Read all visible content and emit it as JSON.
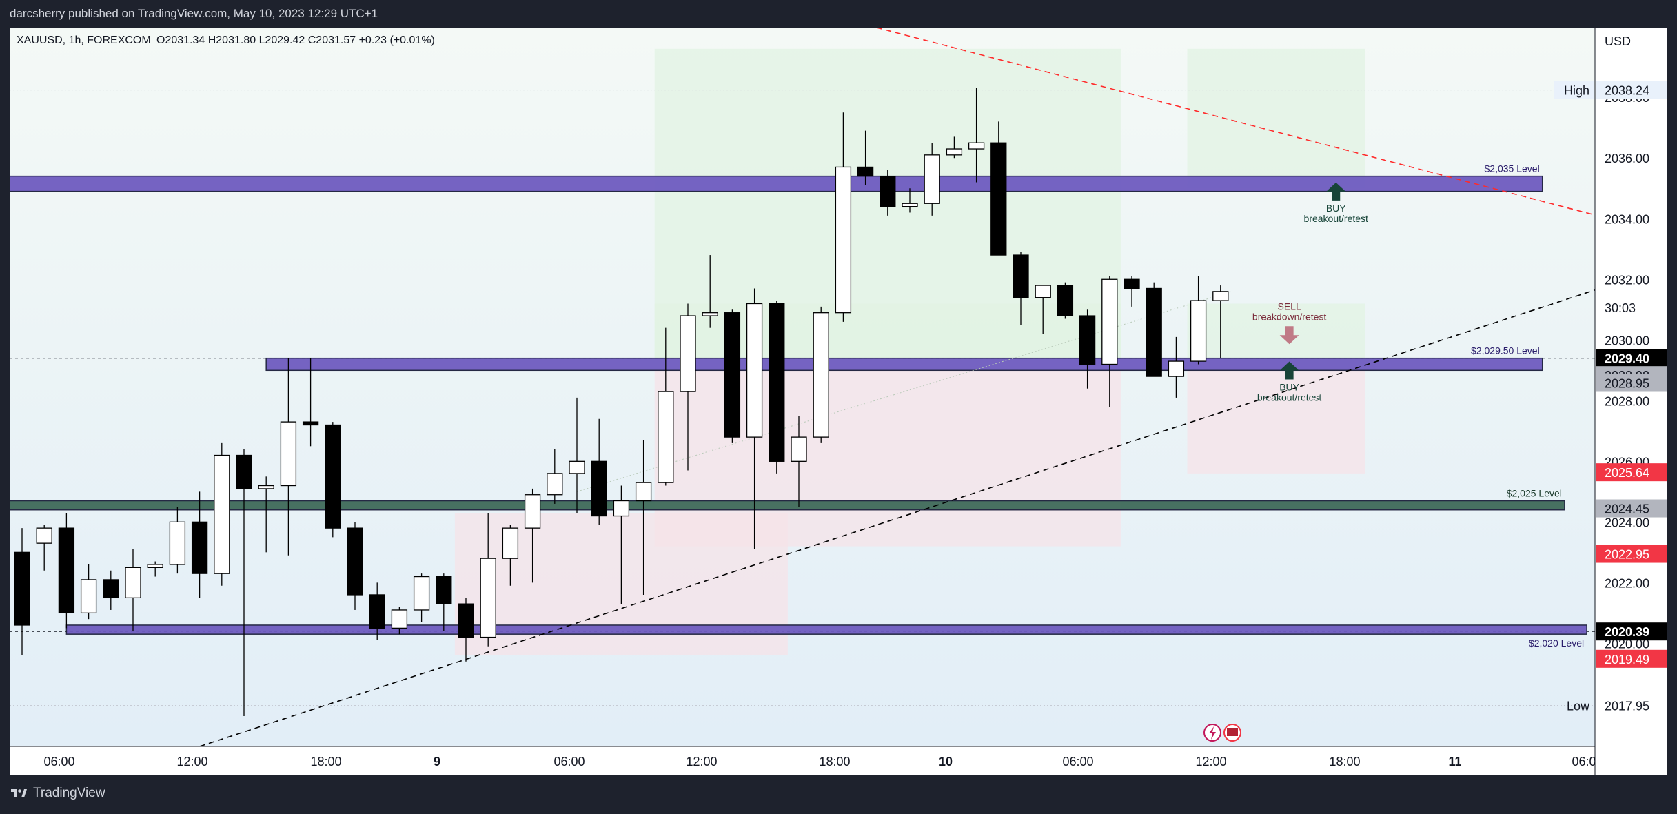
{
  "header": {
    "publish_line": "darcsherry published on TradingView.com, May 10, 2023 12:29 UTC+1"
  },
  "footer": {
    "brand": "TradingView"
  },
  "legend": {
    "symbol": "XAUUSD, 1h, FOREXCOM",
    "ohlc": "O2031.34  H2031.80  L2029.42  C2031.57  +0.23 (+0.01%)"
  },
  "axis": {
    "currency": "USD",
    "countdown": "30:03"
  },
  "colors": {
    "bull_body": "#ffffff",
    "bear_body": "#000000",
    "wick": "#000000",
    "level_purple": "#6f5cc0",
    "level_green": "#3f6b5a",
    "up_zone": "#e1f3e3",
    "down_zone": "#f5e3e8",
    "price_label_red": "#f23645",
    "price_label_black": "#000000",
    "price_label_gray": "#b2b5be"
  },
  "chart_data": {
    "type": "candlestick",
    "symbol": "XAUUSD",
    "timeframe": "1h",
    "x_labels": [
      "06:00",
      "12:00",
      "18:00",
      "9",
      "06:00",
      "12:00",
      "18:00",
      "10",
      "06:00",
      "12:00",
      "18:00",
      "11",
      "06:0"
    ],
    "y_ticks": [
      2020.0,
      2022.0,
      2024.0,
      2026.0,
      2028.0,
      2030.0,
      2032.0,
      2034.0,
      2036.0,
      2038.0
    ],
    "y_tick_labels": [
      "2020.00",
      "2022.00",
      "2024.00",
      "2026.00",
      "2028.00",
      "2030.00",
      "2032.00",
      "2034.00",
      "2036.00",
      "2038.00"
    ],
    "ylim": [
      2016.6,
      2040.3
    ],
    "candles": [
      [
        2023.0,
        2023.8,
        2019.6,
        2020.6
      ],
      [
        2023.3,
        2023.9,
        2022.4,
        2023.8
      ],
      [
        2023.8,
        2024.3,
        2020.5,
        2021.0
      ],
      [
        2021.0,
        2022.6,
        2020.8,
        2022.1
      ],
      [
        2022.1,
        2022.4,
        2021.1,
        2021.5
      ],
      [
        2021.5,
        2023.1,
        2020.4,
        2022.5
      ],
      [
        2022.5,
        2022.7,
        2022.2,
        2022.6
      ],
      [
        2022.6,
        2024.5,
        2022.3,
        2024.0
      ],
      [
        2024.0,
        2025.0,
        2021.5,
        2022.3
      ],
      [
        2022.3,
        2026.6,
        2021.9,
        2026.2
      ],
      [
        2026.2,
        2026.4,
        2017.6,
        2025.1
      ],
      [
        2025.1,
        2025.5,
        2023.0,
        2025.2
      ],
      [
        2025.2,
        2029.4,
        2022.9,
        2027.3
      ],
      [
        2027.3,
        2029.4,
        2026.5,
        2027.2
      ],
      [
        2027.2,
        2027.3,
        2023.5,
        2023.8
      ],
      [
        2023.8,
        2024.0,
        2021.1,
        2021.6
      ],
      [
        2021.6,
        2022.0,
        2020.1,
        2020.5
      ],
      [
        2020.5,
        2021.2,
        2020.3,
        2021.1
      ],
      [
        2021.1,
        2022.3,
        2020.7,
        2022.2
      ],
      [
        2022.2,
        2022.3,
        2020.4,
        2021.3
      ],
      [
        2021.3,
        2021.5,
        2019.4,
        2020.2
      ],
      [
        2020.2,
        2024.3,
        2019.9,
        2022.8
      ],
      [
        2022.8,
        2023.9,
        2021.9,
        2023.8
      ],
      [
        2023.8,
        2025.1,
        2022.0,
        2024.9
      ],
      [
        2024.9,
        2026.4,
        2024.6,
        2025.6
      ],
      [
        2025.6,
        2028.1,
        2024.3,
        2026.0
      ],
      [
        2026.0,
        2027.4,
        2023.9,
        2024.2
      ],
      [
        2024.2,
        2025.2,
        2021.3,
        2024.7
      ],
      [
        2024.7,
        2026.7,
        2021.6,
        2025.3
      ],
      [
        2025.3,
        2030.4,
        2025.2,
        2028.3
      ],
      [
        2028.3,
        2031.2,
        2025.7,
        2030.8
      ],
      [
        2030.8,
        2032.8,
        2030.4,
        2030.9
      ],
      [
        2030.9,
        2031.0,
        2026.6,
        2026.8
      ],
      [
        2026.8,
        2031.7,
        2023.1,
        2031.2
      ],
      [
        2031.2,
        2031.3,
        2025.6,
        2026.0
      ],
      [
        2026.0,
        2027.5,
        2024.5,
        2026.8
      ],
      [
        2026.8,
        2031.1,
        2026.6,
        2030.9
      ],
      [
        2030.9,
        2037.5,
        2030.6,
        2035.7
      ],
      [
        2035.7,
        2036.9,
        2035.1,
        2035.4
      ],
      [
        2035.4,
        2035.6,
        2034.1,
        2034.4
      ],
      [
        2034.4,
        2035.0,
        2034.2,
        2034.5
      ],
      [
        2034.5,
        2036.5,
        2034.1,
        2036.1
      ],
      [
        2036.1,
        2036.7,
        2036.0,
        2036.3
      ],
      [
        2036.3,
        2038.3,
        2035.2,
        2036.5
      ],
      [
        2036.5,
        2037.2,
        2032.9,
        2032.8
      ],
      [
        2032.8,
        2032.9,
        2030.5,
        2031.4
      ],
      [
        2031.4,
        2031.7,
        2030.2,
        2031.8
      ],
      [
        2031.8,
        2031.9,
        2030.7,
        2030.8
      ],
      [
        2030.8,
        2031.0,
        2028.4,
        2029.2
      ],
      [
        2029.2,
        2032.1,
        2027.8,
        2032.0
      ],
      [
        2032.0,
        2032.1,
        2031.1,
        2031.7
      ],
      [
        2031.7,
        2031.9,
        2029.0,
        2028.8
      ],
      [
        2028.8,
        2030.1,
        2028.1,
        2029.3
      ],
      [
        2029.3,
        2032.1,
        2029.2,
        2031.3
      ],
      [
        2031.3,
        2031.8,
        2029.4,
        2031.6
      ]
    ],
    "zones": [
      {
        "x0": 20,
        "x1": 34,
        "y_top": 2024.3,
        "y_mid": 2024.3,
        "y_bottom": 2019.6
      },
      {
        "x0": 29,
        "x1": 49,
        "y_top": 2031.2,
        "y_mid": 2029.4,
        "y_bottom": 2023.2
      },
      {
        "x0": 53,
        "x1": 60,
        "y_top": 2031.2,
        "y_mid": 2029.4,
        "y_bottom": 2025.6
      },
      {
        "x0": 29,
        "x1": 49,
        "y_top": 2039.6,
        "y_mid": 2029.4,
        "y_bottom": 2029.4
      },
      {
        "x0": 53,
        "x1": 60,
        "y_top": 2039.6,
        "y_mid": 2035.0,
        "y_bottom": 2035.0
      }
    ],
    "levels": [
      {
        "label": "$2,035 Level",
        "y_low": 2034.9,
        "y_high": 2035.4,
        "x0": -1,
        "x1": 68.5,
        "color": "purple"
      },
      {
        "label": "$2,029.50 Level",
        "y_low": 2029.0,
        "y_high": 2029.4,
        "x0": 11,
        "x1": 68.5,
        "color": "purple"
      },
      {
        "label": "$2,025 Level",
        "y_low": 2024.4,
        "y_high": 2024.7,
        "x0": -1,
        "x1": 69.5,
        "color": "green"
      },
      {
        "label": "$2,020 Level",
        "y_low": 2020.3,
        "y_high": 2020.6,
        "x0": 2,
        "x1": 70.5,
        "color": "purple"
      }
    ],
    "annotations": [
      {
        "title": "BUY",
        "text": "breakout/retest",
        "x": 59.2,
        "y": 2034.6,
        "arrow": "up"
      },
      {
        "title": "SELL",
        "text": "breakdown/retest",
        "x": 57.1,
        "y": 2030.0,
        "arrow": "down"
      },
      {
        "title": "BUY",
        "text": "breakout/retest",
        "x": 57.1,
        "y": 2028.7,
        "arrow": "up"
      }
    ],
    "trendlines": [
      {
        "style": "dashed",
        "color": "#000000",
        "x0": 8,
        "y0": 2016.6,
        "x1": 71.5,
        "y1": 2031.8
      },
      {
        "style": "dashed",
        "color": "#ff2b2b",
        "x0": 38.5,
        "y0": 2040.3,
        "x1": 71.5,
        "y1": 2034.0
      },
      {
        "style": "dotted",
        "color": "#b8c9b8",
        "x0": 25,
        "y0": 2025.0,
        "x1": 54.5,
        "y1": 2031.6
      }
    ],
    "price_labels": [
      {
        "value": 2029.4,
        "text": "2029.40",
        "style": "black"
      },
      {
        "value": 2028.98,
        "text": "2028.98",
        "style": "gray"
      },
      {
        "value": 2028.95,
        "text": "2028.95",
        "style": "gray"
      },
      {
        "value": 2025.64,
        "text": "2025.64",
        "style": "red"
      },
      {
        "value": 2024.45,
        "text": "2024.45",
        "style": "gray"
      },
      {
        "value": 2022.95,
        "text": "2022.95",
        "style": "red"
      },
      {
        "value": 2020.39,
        "text": "2020.39",
        "style": "black"
      },
      {
        "value": 2019.49,
        "text": "2019.49",
        "style": "red"
      }
    ],
    "high": {
      "label": "High",
      "value": 2038.24,
      "text": "2038.24"
    },
    "low": {
      "label": "Low",
      "value": 2017.95,
      "text": "2017.95"
    }
  }
}
